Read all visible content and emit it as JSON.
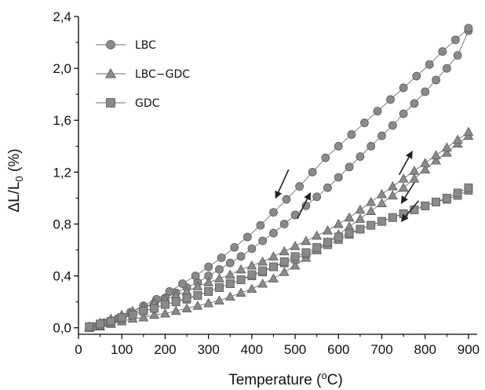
{
  "chart_data": {
    "type": "scatter",
    "xlabel_main": "Temperature (",
    "xlabel_sup": "o",
    "xlabel_tail": "C)",
    "ylabel": "ΔL/L",
    "ylabel_sub": "0",
    "ylabel_tail": " (%)",
    "xlim": [
      0,
      920
    ],
    "ylim": [
      -0.05,
      2.4
    ],
    "xticks": [
      0,
      100,
      200,
      300,
      400,
      500,
      600,
      700,
      800,
      900
    ],
    "xtick_labels": [
      "0",
      "100",
      "200",
      "300",
      "400",
      "500",
      "600",
      "700",
      "800",
      "900"
    ],
    "yticks": [
      0.0,
      0.4,
      0.8,
      1.2,
      1.6,
      2.0,
      2.4
    ],
    "ytick_labels": [
      "0,0",
      "0,4",
      "0,8",
      "1,2",
      "1,6",
      "2,0",
      "2,4"
    ],
    "legend_position": "top-left",
    "series": [
      {
        "name": "LBC",
        "marker": "circle",
        "heating": {
          "x": [
            25,
            50,
            75,
            100,
            125,
            150,
            175,
            200,
            225,
            250,
            275,
            300,
            325,
            350,
            375,
            400,
            425,
            450,
            475,
            500,
            525,
            550,
            575,
            600,
            625,
            650,
            675,
            700,
            725,
            750,
            775,
            800,
            825,
            850,
            875,
            900
          ],
          "y": [
            0.0,
            0.02,
            0.05,
            0.08,
            0.11,
            0.15,
            0.19,
            0.23,
            0.27,
            0.31,
            0.35,
            0.4,
            0.45,
            0.5,
            0.55,
            0.61,
            0.67,
            0.73,
            0.8,
            0.87,
            0.94,
            1.01,
            1.08,
            1.16,
            1.24,
            1.32,
            1.4,
            1.48,
            1.56,
            1.65,
            1.73,
            1.82,
            1.91,
            2.0,
            2.1,
            2.29
          ]
        },
        "cooling": {
          "x": [
            900,
            870,
            840,
            810,
            780,
            750,
            720,
            690,
            660,
            630,
            600,
            570,
            540,
            510,
            480,
            450,
            420,
            390,
            360,
            330,
            300,
            270,
            240,
            210,
            180,
            150,
            120,
            90,
            60,
            35
          ],
          "y": [
            2.31,
            2.22,
            2.13,
            2.03,
            1.94,
            1.85,
            1.76,
            1.67,
            1.58,
            1.49,
            1.4,
            1.31,
            1.2,
            1.09,
            0.99,
            0.89,
            0.79,
            0.7,
            0.62,
            0.54,
            0.47,
            0.4,
            0.34,
            0.28,
            0.22,
            0.17,
            0.12,
            0.07,
            0.04,
            0.01
          ]
        }
      },
      {
        "name": "LBC−GDC",
        "marker": "triangle",
        "heating": {
          "x": [
            25,
            50,
            75,
            100,
            125,
            150,
            175,
            200,
            225,
            250,
            275,
            300,
            325,
            350,
            375,
            400,
            425,
            450,
            475,
            500,
            525,
            550,
            575,
            600,
            625,
            650,
            675,
            700,
            725,
            750,
            775,
            800,
            825,
            850,
            875,
            900
          ],
          "y": [
            0.0,
            0.01,
            0.03,
            0.05,
            0.07,
            0.08,
            0.1,
            0.11,
            0.13,
            0.15,
            0.17,
            0.19,
            0.21,
            0.24,
            0.27,
            0.3,
            0.34,
            0.38,
            0.43,
            0.48,
            0.54,
            0.6,
            0.66,
            0.72,
            0.78,
            0.84,
            0.9,
            0.96,
            1.02,
            1.08,
            1.15,
            1.22,
            1.29,
            1.35,
            1.42,
            1.48
          ]
        },
        "cooling": {
          "x": [
            900,
            875,
            850,
            825,
            800,
            775,
            750,
            725,
            700,
            675,
            650,
            625,
            600,
            575,
            550,
            525,
            500,
            475,
            450,
            425,
            400,
            375,
            350,
            325,
            300,
            275,
            250,
            225,
            200,
            175,
            150,
            125,
            100,
            75,
            50,
            25
          ],
          "y": [
            1.51,
            1.45,
            1.39,
            1.33,
            1.27,
            1.21,
            1.15,
            1.09,
            1.03,
            0.97,
            0.91,
            0.85,
            0.8,
            0.75,
            0.71,
            0.67,
            0.63,
            0.59,
            0.55,
            0.51,
            0.48,
            0.45,
            0.41,
            0.38,
            0.35,
            0.32,
            0.28,
            0.25,
            0.22,
            0.19,
            0.16,
            0.13,
            0.1,
            0.07,
            0.04,
            0.01
          ]
        }
      },
      {
        "name": "GDC",
        "marker": "square",
        "heating": {
          "x": [
            25,
            50,
            75,
            100,
            125,
            150,
            175,
            200,
            225,
            250,
            275,
            300,
            325,
            350,
            375,
            400,
            425,
            450,
            475,
            500,
            525,
            550,
            575,
            600,
            625,
            650,
            675,
            700,
            725,
            750,
            775,
            800,
            825,
            850,
            875,
            900
          ],
          "y": [
            0.0,
            0.02,
            0.04,
            0.07,
            0.1,
            0.13,
            0.15,
            0.18,
            0.2,
            0.22,
            0.25,
            0.28,
            0.31,
            0.34,
            0.37,
            0.4,
            0.43,
            0.47,
            0.5,
            0.53,
            0.57,
            0.6,
            0.64,
            0.68,
            0.72,
            0.76,
            0.79,
            0.82,
            0.85,
            0.88,
            0.91,
            0.94,
            0.97,
            0.99,
            1.02,
            1.06
          ]
        },
        "cooling": {
          "x": [
            900,
            875,
            850,
            825,
            800,
            775,
            750,
            725,
            700,
            675,
            650,
            625,
            600,
            575,
            550,
            525,
            500,
            475,
            450,
            425,
            400,
            375,
            350,
            325,
            300,
            275,
            250,
            225,
            200,
            175,
            150,
            125,
            100,
            75,
            50,
            25
          ],
          "y": [
            1.08,
            1.04,
            1.0,
            0.97,
            0.94,
            0.91,
            0.88,
            0.85,
            0.82,
            0.79,
            0.76,
            0.73,
            0.7,
            0.66,
            0.62,
            0.58,
            0.55,
            0.51,
            0.47,
            0.44,
            0.41,
            0.37,
            0.34,
            0.31,
            0.28,
            0.25,
            0.23,
            0.2,
            0.18,
            0.15,
            0.13,
            0.1,
            0.08,
            0.05,
            0.03,
            0.01
          ]
        }
      }
    ],
    "colors": {
      "marker_fill": "#8a8a8a",
      "marker_stroke": "#5a5a5a",
      "line": "#6e6e6e",
      "axis": "#000000"
    }
  }
}
